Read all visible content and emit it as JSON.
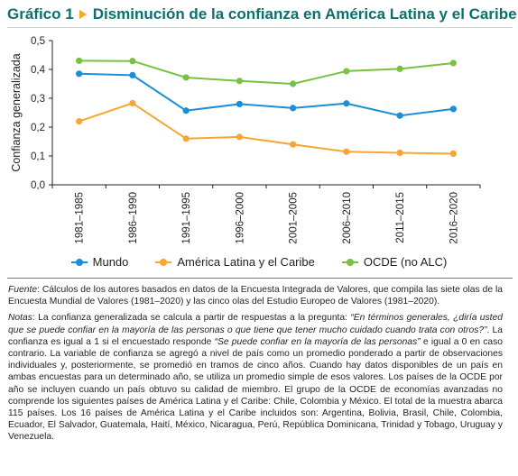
{
  "header": {
    "figure_number": "Gráfico 1",
    "title": "Disminución de la confianza en América Latina y el Caribe"
  },
  "chart_data": {
    "type": "line",
    "ylabel": "Confianza generalizada",
    "xlabel": "",
    "ylim": [
      0,
      0.5
    ],
    "yticks": [
      "0,0",
      "0,1",
      "0,2",
      "0,3",
      "0,4",
      "0,5"
    ],
    "grid": false,
    "legend_position": "bottom",
    "categories": [
      "1981–1985",
      "1986–1990",
      "1991–1995",
      "1996–2000",
      "2001–2005",
      "2006–2010",
      "2011–2015",
      "2016–2020"
    ],
    "series": [
      {
        "name": "Mundo",
        "color": "#1a8fd8",
        "values": [
          0.385,
          0.38,
          0.257,
          0.28,
          0.266,
          0.282,
          0.24,
          0.263
        ]
      },
      {
        "name": "América Latina y el Caribe",
        "color": "#f7a632",
        "values": [
          0.22,
          0.283,
          0.16,
          0.166,
          0.14,
          0.115,
          0.111,
          0.108
        ]
      },
      {
        "name": "OCDE (no ALC)",
        "color": "#7ac143",
        "values": [
          0.43,
          0.429,
          0.372,
          0.36,
          0.35,
          0.394,
          0.402,
          0.422
        ]
      }
    ]
  },
  "notes": {
    "fuente_label": "Fuente",
    "fuente_text": ": Cálculos de los autores basados en datos de la Encuesta Integrada de Valores, que compila las siete olas de la Encuesta Mundial de Valores (1981–2020) y las cinco olas del Estudio Europeo de Valores (1981–2020).",
    "notas_label": "Notas",
    "notas_text_1": ": La confianza generalizada se calcula a partir de respuestas a la pregunta: ",
    "notas_quote_1": "“En términos generales, ¿diría usted que se puede confiar en la mayoría de las personas o que tiene que tener mucho cuidado cuando trata con otros?”",
    "notas_text_2": ". La confianza es igual a 1 si el encuestado responde ",
    "notas_quote_2": "“Se puede confiar en la mayoría de las personas”",
    "notas_text_3": " e igual a 0 en caso contrario. La variable de confianza se agregó a nivel de país como un promedio ponderado a partir de observaciones individuales y, posteriormente, se promedió en tramos de cinco años. Cuando hay datos disponibles de un país en ambas encuestas para un determinado año, se utiliza un promedio simple de esos valores. Los países de la OCDE por año se incluyen cuando un país obtuvo su calidad de miembro. El grupo de la OCDE de economías avanzadas no comprende los siguientes países de América Latina y el Caribe: Chile, Colombia y México. El total de la muestra abarca 115 países. Los 16 países de América Latina y el Caribe incluidos son: Argentina, Bolivia, Brasil, Chile, Colombia, Ecuador, El Salvador, Guatemala, Haití, México, Nicaragua, Perú, República Dominicana, Trinidad y Tobago, Uruguay y Venezuela."
  }
}
